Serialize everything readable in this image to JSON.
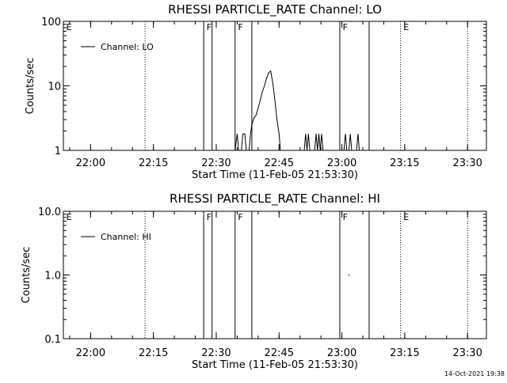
{
  "footer_stamp": "14-Oct-2021 19:38",
  "chart_data": [
    {
      "type": "line",
      "title": "RHESSI PARTICLE_RATE Channel: LO",
      "xlabel": "Start Time (11-Feb-05 21:53:30)",
      "ylabel": "Counts/sec",
      "y_scale": "log",
      "ylim": [
        1,
        100
      ],
      "yticks": [
        1,
        10,
        100
      ],
      "ytick_labels": [
        "1",
        "10",
        "100"
      ],
      "xlim": [
        "21:53:30",
        "23:34:30"
      ],
      "xticks": [
        "22:00",
        "22:15",
        "22:30",
        "22:45",
        "23:00",
        "23:15",
        "23:30"
      ],
      "grid": false,
      "legend": {
        "position": "top-left",
        "entries": [
          "Channel: LO"
        ]
      },
      "solid_vlines": [
        "22:27:00",
        "22:29:00",
        "22:34:30",
        "22:38:30",
        "22:59:30",
        "23:06:30"
      ],
      "dotted_vlines": [
        "22:13:00",
        "23:14:00",
        "23:30:00"
      ],
      "flags": [
        {
          "label": "E",
          "time": "21:54:00"
        },
        {
          "label": "F",
          "time": "22:27:30"
        },
        {
          "label": "F",
          "time": "22:35:00"
        },
        {
          "label": "F",
          "time": "23:00:00"
        },
        {
          "label": "E",
          "time": "23:14:30"
        }
      ],
      "series": [
        {
          "name": "Channel: LO",
          "points": [
            [
              "22:34:30",
              1.0
            ],
            [
              "22:35:00",
              1.8
            ],
            [
              "22:35:20",
              1.0
            ],
            [
              "22:36:00",
              1.0
            ],
            [
              "22:36:20",
              1.8
            ],
            [
              "22:36:50",
              1.8
            ],
            [
              "22:37:10",
              1.0
            ],
            [
              "22:37:50",
              1.0
            ],
            [
              "22:38:10",
              1.8
            ],
            [
              "22:38:30",
              2.5
            ],
            [
              "22:39:00",
              3.2
            ],
            [
              "22:39:30",
              3.5
            ],
            [
              "22:40:00",
              4.5
            ],
            [
              "22:40:30",
              6.0
            ],
            [
              "22:41:00",
              8.0
            ],
            [
              "22:41:30",
              10.0
            ],
            [
              "22:42:00",
              13.0
            ],
            [
              "22:42:30",
              16.0
            ],
            [
              "22:43:00",
              17.0
            ],
            [
              "22:43:30",
              11.0
            ],
            [
              "22:44:00",
              6.0
            ],
            [
              "22:44:30",
              3.0
            ],
            [
              "22:45:00",
              1.8
            ],
            [
              "22:45:20",
              1.0
            ]
          ]
        },
        {
          "name": "",
          "points": [
            [
              "22:51:00",
              1.0
            ],
            [
              "22:51:20",
              1.8
            ],
            [
              "22:51:40",
              1.0
            ],
            [
              "22:52:00",
              1.8
            ],
            [
              "22:52:20",
              1.0
            ],
            [
              "22:53:30",
              1.0
            ],
            [
              "22:53:50",
              1.8
            ],
            [
              "22:54:10",
              1.0
            ],
            [
              "22:54:30",
              1.8
            ],
            [
              "22:54:50",
              1.0
            ],
            [
              "22:55:10",
              1.8
            ],
            [
              "22:55:30",
              1.0
            ]
          ]
        },
        {
          "name": "",
          "points": [
            [
              "23:00:30",
              1.0
            ],
            [
              "23:00:50",
              1.8
            ],
            [
              "23:01:10",
              1.0
            ],
            [
              "23:01:40",
              1.0
            ],
            [
              "23:02:00",
              1.8
            ],
            [
              "23:02:20",
              1.0
            ],
            [
              "23:03:30",
              1.0
            ],
            [
              "23:03:50",
              1.8
            ],
            [
              "23:04:10",
              1.0
            ]
          ]
        }
      ]
    },
    {
      "type": "line",
      "title": "RHESSI PARTICLE_RATE Channel: HI",
      "xlabel": "Start Time (11-Feb-05 21:53:30)",
      "ylabel": "Counts/sec",
      "y_scale": "log",
      "ylim": [
        0.1,
        10
      ],
      "yticks": [
        0.1,
        1,
        10
      ],
      "ytick_labels": [
        "0.1",
        "1.0",
        "10.0"
      ],
      "xlim": [
        "21:53:30",
        "23:34:30"
      ],
      "xticks": [
        "22:00",
        "22:15",
        "22:30",
        "22:45",
        "23:00",
        "23:15",
        "23:30"
      ],
      "grid": false,
      "legend": {
        "position": "top-left",
        "entries": [
          "Channel: HI"
        ]
      },
      "solid_vlines": [
        "22:27:00",
        "22:29:00",
        "22:34:30",
        "22:38:30",
        "22:59:30",
        "23:06:30"
      ],
      "dotted_vlines": [
        "22:13:00",
        "23:14:00",
        "23:30:00"
      ],
      "flags": [
        {
          "label": "E",
          "time": "21:54:00"
        },
        {
          "label": "F",
          "time": "22:27:30"
        },
        {
          "label": "F",
          "time": "22:35:00"
        },
        {
          "label": "F",
          "time": "23:00:00"
        },
        {
          "label": "E",
          "time": "23:14:30"
        }
      ],
      "series": [
        {
          "name": "Channel: HI",
          "points": [
            [
              "23:01:30",
              1.0
            ],
            [
              "23:01:50",
              1.0
            ]
          ]
        }
      ]
    }
  ]
}
